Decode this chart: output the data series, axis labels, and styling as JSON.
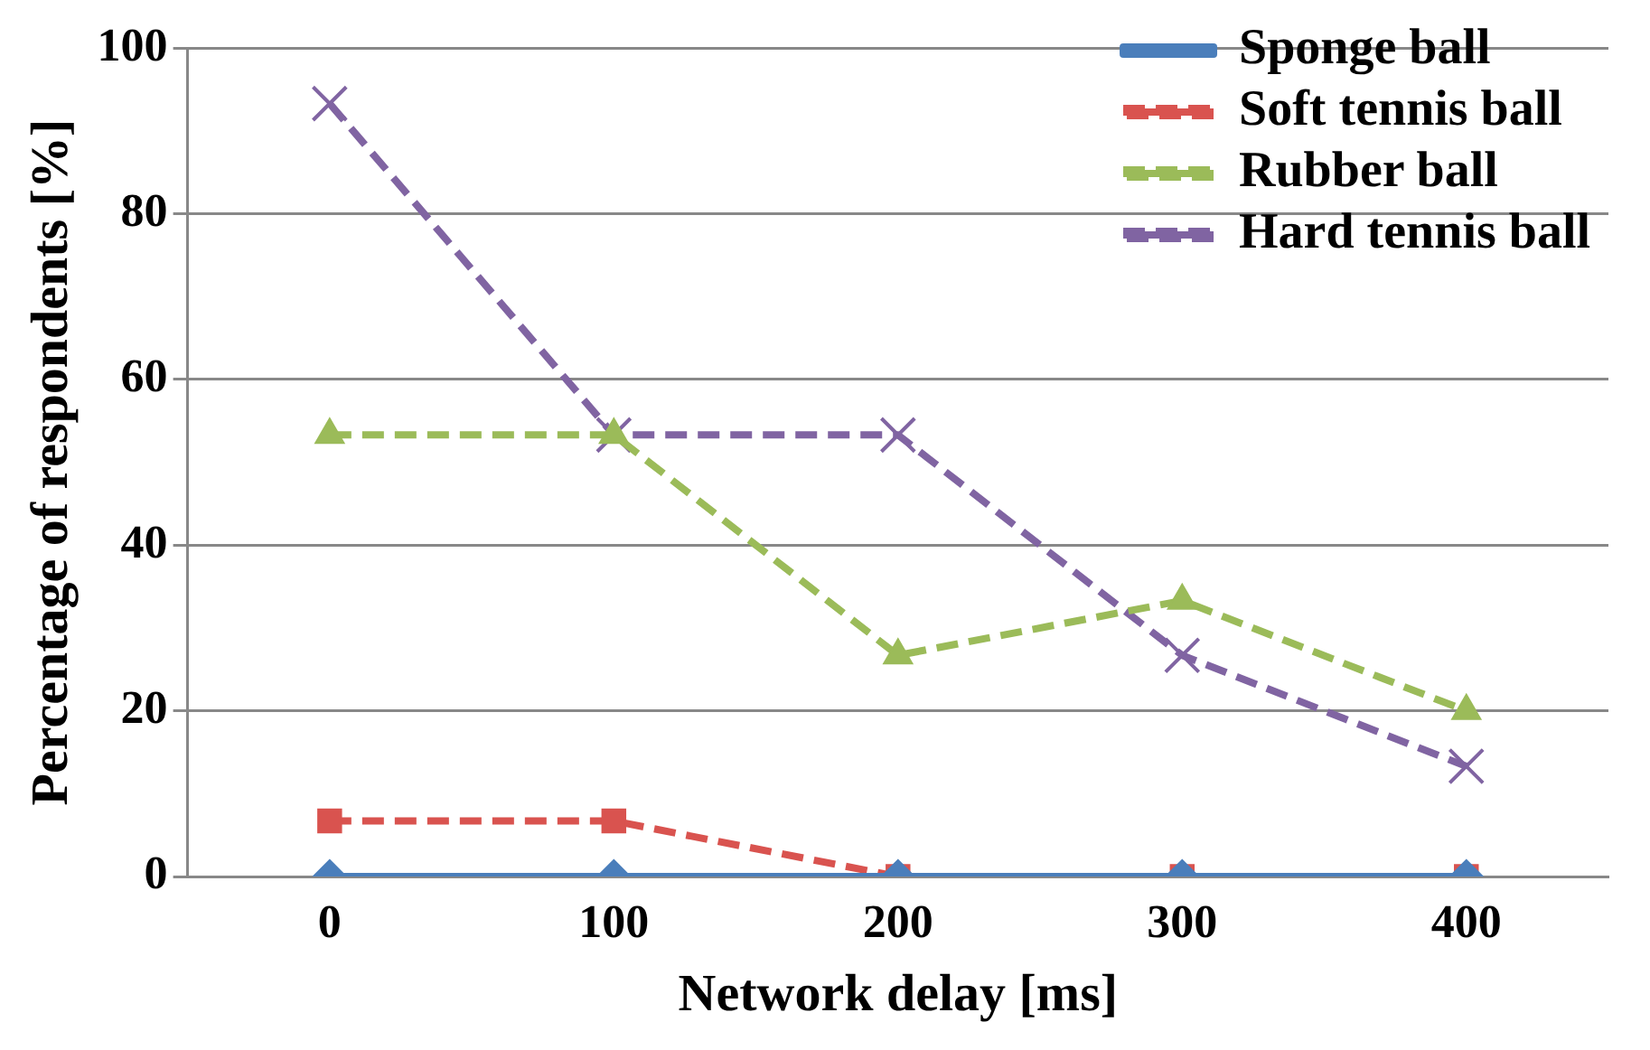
{
  "chart_data": {
    "type": "line",
    "xlabel": "Network delay [ms]",
    "ylabel": "Percentage of respondents [%]",
    "categories": [
      "0",
      "100",
      "200",
      "300",
      "400"
    ],
    "ylim": [
      0,
      100
    ],
    "yticks": [
      0,
      20,
      40,
      60,
      80,
      100
    ],
    "grid": "y",
    "legend": "top right",
    "series": [
      {
        "name": "Sponge ball",
        "color": "#4a7ebb",
        "marker": "diamond",
        "line_style": "solid",
        "values": [
          0,
          0,
          0,
          0,
          0
        ]
      },
      {
        "name": "Soft tennis ball",
        "color": "#d9534f",
        "marker": "square",
        "line_style": "dashed",
        "values": [
          6.7,
          6.7,
          0,
          0,
          0
        ]
      },
      {
        "name": "Rubber ball",
        "color": "#9bbb59",
        "marker": "triangle",
        "line_style": "dashed",
        "values": [
          53.3,
          53.3,
          26.7,
          33.3,
          20
        ]
      },
      {
        "name": "Hard tennis ball",
        "color": "#8064a2",
        "marker": "cross",
        "line_style": "dashed",
        "values": [
          93.3,
          53.3,
          53.3,
          26.7,
          13.3
        ]
      }
    ]
  }
}
